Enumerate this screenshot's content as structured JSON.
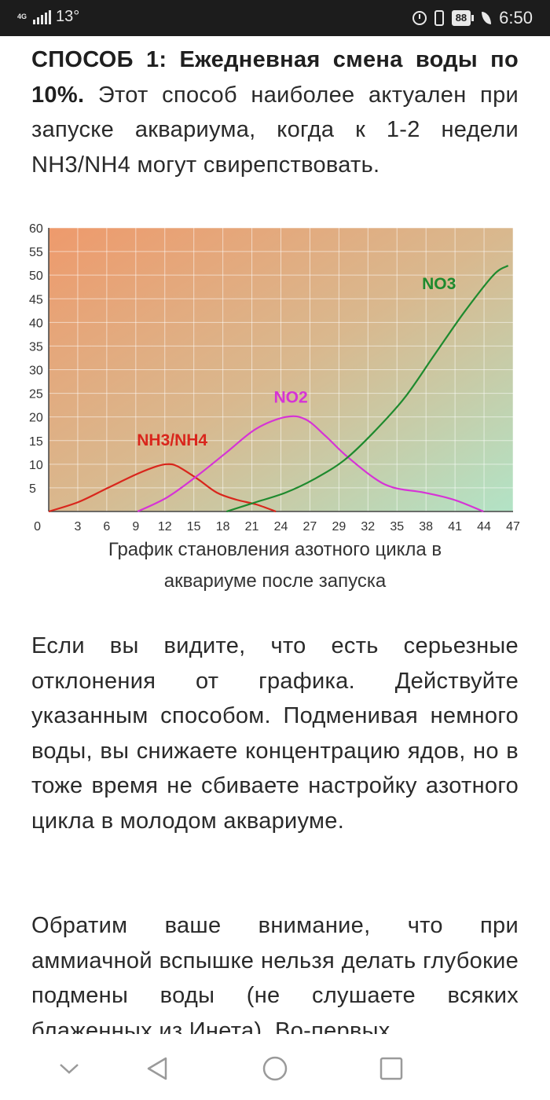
{
  "status_bar": {
    "network": "4G",
    "temperature": "13°",
    "battery": "88",
    "time": "6:50"
  },
  "article": {
    "para1_bold": "СПОСОБ 1: Ежедневная смена воды по 10%.",
    "para1_text": " Этот способ наиболее актуален при запуске аквариума, когда к 1-2 недели NH3/NH4 могут свирепствовать.",
    "caption_line1": "График становления азотного цикла в",
    "caption_line2": "аквариуме после запуска",
    "para2": "Если вы видите, что есть серьезные отклонения от графика. Действуйте указанным способом. Подменивая немного воды, вы снижаете концентрацию ядов, но в тоже время не сбиваете настройку азотного цикла в молодом аквариуме.",
    "para3": "Обратим ваше внимание, что при аммиачной вспышке нельзя делать глубокие подмены воды (не слушаете всяких блаженных из Инета). Во-первых"
  },
  "chart_data": {
    "type": "line",
    "x_ticks": [
      0,
      3,
      6,
      9,
      12,
      15,
      18,
      21,
      24,
      27,
      29,
      32,
      35,
      38,
      41,
      44,
      47
    ],
    "y_ticks": [
      5,
      10,
      15,
      20,
      25,
      30,
      35,
      40,
      45,
      50,
      55,
      60
    ],
    "xlim": [
      0,
      47
    ],
    "ylim": [
      0,
      60
    ],
    "grid": true,
    "series": [
      {
        "name": "NH3/NH4",
        "color": "#d9261c",
        "points": [
          [
            0,
            0
          ],
          [
            3,
            2
          ],
          [
            6,
            5
          ],
          [
            9,
            8
          ],
          [
            11,
            9.6
          ],
          [
            12,
            10
          ],
          [
            13,
            9.6
          ],
          [
            15,
            7
          ],
          [
            17,
            4
          ],
          [
            19,
            2.5
          ],
          [
            21,
            1.5
          ],
          [
            23,
            0
          ]
        ]
      },
      {
        "name": "NO2",
        "color": "#d633d6",
        "points": [
          [
            9,
            0
          ],
          [
            12,
            3
          ],
          [
            15,
            7.5
          ],
          [
            18,
            12.5
          ],
          [
            21,
            17.5
          ],
          [
            24,
            20
          ],
          [
            26,
            19.5
          ],
          [
            28,
            16
          ],
          [
            30,
            12
          ],
          [
            33,
            7
          ],
          [
            35,
            5
          ],
          [
            38,
            4
          ],
          [
            41,
            2.5
          ],
          [
            44,
            0
          ]
        ]
      },
      {
        "name": "NO3",
        "color": "#1e8a2e",
        "points": [
          [
            18,
            0
          ],
          [
            21,
            2
          ],
          [
            24,
            4
          ],
          [
            27,
            7
          ],
          [
            30,
            11
          ],
          [
            33,
            17
          ],
          [
            36,
            24
          ],
          [
            39,
            33
          ],
          [
            42,
            42
          ],
          [
            45,
            50
          ],
          [
            46.5,
            52
          ]
        ]
      }
    ]
  }
}
